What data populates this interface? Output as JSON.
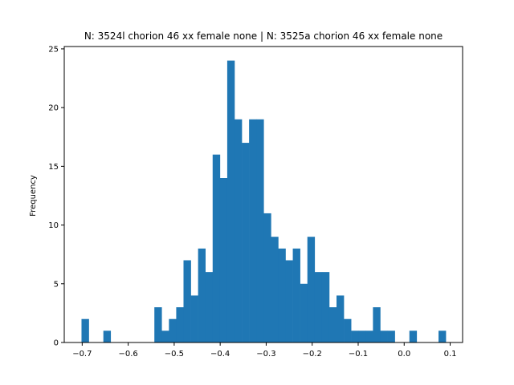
{
  "chart_data": {
    "type": "bar",
    "title": "N: 3524l chorion 46 xx female none | N: 3525a chorion 46 xx female none",
    "xlabel": "",
    "ylabel": "Frequency",
    "xlim": [
      -0.739,
      0.127
    ],
    "ylim": [
      0,
      25.2
    ],
    "xticks": [
      -0.7,
      -0.6,
      -0.5,
      -0.4,
      -0.3,
      -0.2,
      -0.1,
      0.0,
      0.1
    ],
    "xtick_labels": [
      "−0.7",
      "−0.6",
      "−0.5",
      "−0.4",
      "−0.3",
      "−0.2",
      "−0.1",
      "0.0",
      "0.1"
    ],
    "yticks": [
      0,
      5,
      10,
      15,
      20,
      25
    ],
    "ytick_labels": [
      "0",
      "5",
      "10",
      "15",
      "20",
      "25"
    ],
    "bin_start": -0.7015,
    "bin_width": 0.01584,
    "values": [
      2,
      0,
      0,
      1,
      0,
      0,
      0,
      0,
      0,
      0,
      3,
      1,
      2,
      3,
      7,
      4,
      8,
      6,
      16,
      14,
      24,
      19,
      17,
      19,
      19,
      11,
      9,
      8,
      7,
      8,
      5,
      9,
      6,
      6,
      3,
      4,
      2,
      1,
      1,
      1,
      3,
      1,
      1,
      0,
      0,
      1,
      0,
      0,
      0,
      1
    ],
    "color": "#1f77b4",
    "grid": false,
    "legend": "none"
  }
}
